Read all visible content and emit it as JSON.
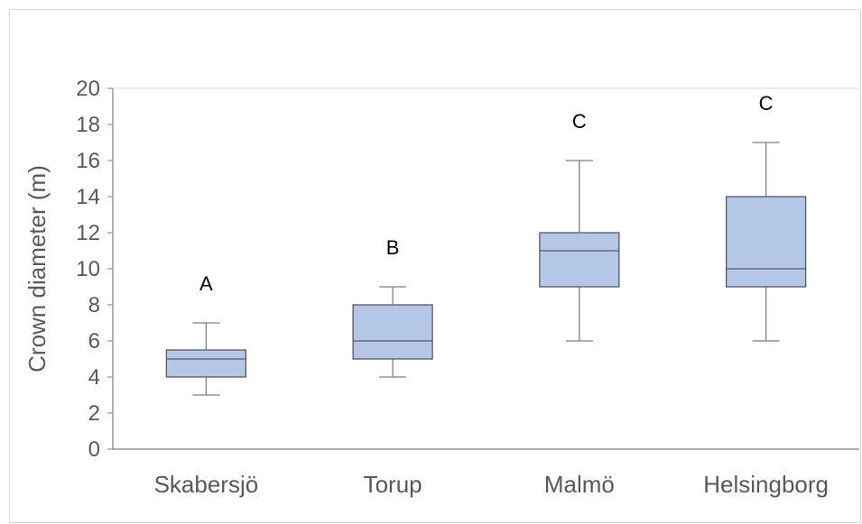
{
  "chart_data": {
    "type": "box",
    "ylabel": "Crown diameter (m)",
    "xlabel": "",
    "ylim": [
      0,
      20
    ],
    "yticks": [
      0,
      2,
      4,
      6,
      8,
      10,
      12,
      14,
      16,
      18,
      20
    ],
    "grid": false,
    "categories": [
      "Skabersjö",
      "Torup",
      "Malmö",
      "Helsingborg"
    ],
    "boxes": [
      {
        "category": "Skabersjö",
        "min": 3,
        "q1": 4,
        "median": 5,
        "q3": 5.5,
        "max": 7,
        "group_label": "A"
      },
      {
        "category": "Torup",
        "min": 4,
        "q1": 5,
        "median": 6,
        "q3": 8,
        "max": 9,
        "group_label": "B"
      },
      {
        "category": "Malmö",
        "min": 6,
        "q1": 9,
        "median": 11,
        "q3": 12,
        "max": 16,
        "group_label": "C"
      },
      {
        "category": "Helsingborg",
        "min": 6,
        "q1": 9,
        "median": 10,
        "q3": 14,
        "max": 17,
        "group_label": "C"
      }
    ],
    "colors": {
      "box_fill": "#b4c7e7",
      "box_stroke": "#595959",
      "whisker": "#7f7f7f",
      "axis": "#7f7f7f"
    }
  }
}
